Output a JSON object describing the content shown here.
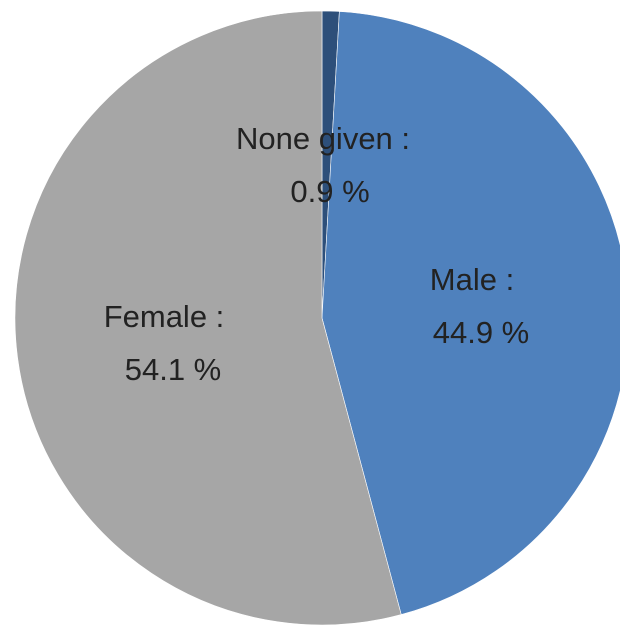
{
  "chart_data": {
    "type": "pie",
    "title": "",
    "slices": [
      {
        "name": "None given",
        "label_name": "None given :",
        "value": 0.9,
        "value_label": "0.9 %",
        "color": "#2d4f7a"
      },
      {
        "name": "Male",
        "label_name": "Male :",
        "value": 44.9,
        "value_label": "44.9 %",
        "color": "#4f81bd"
      },
      {
        "name": "Female",
        "label_name": "Female :",
        "value": 54.1,
        "value_label": "54.1 %",
        "color": "#a6a6a6"
      }
    ],
    "start_angle_deg": 0,
    "direction": "clockwise",
    "legend": "none"
  }
}
